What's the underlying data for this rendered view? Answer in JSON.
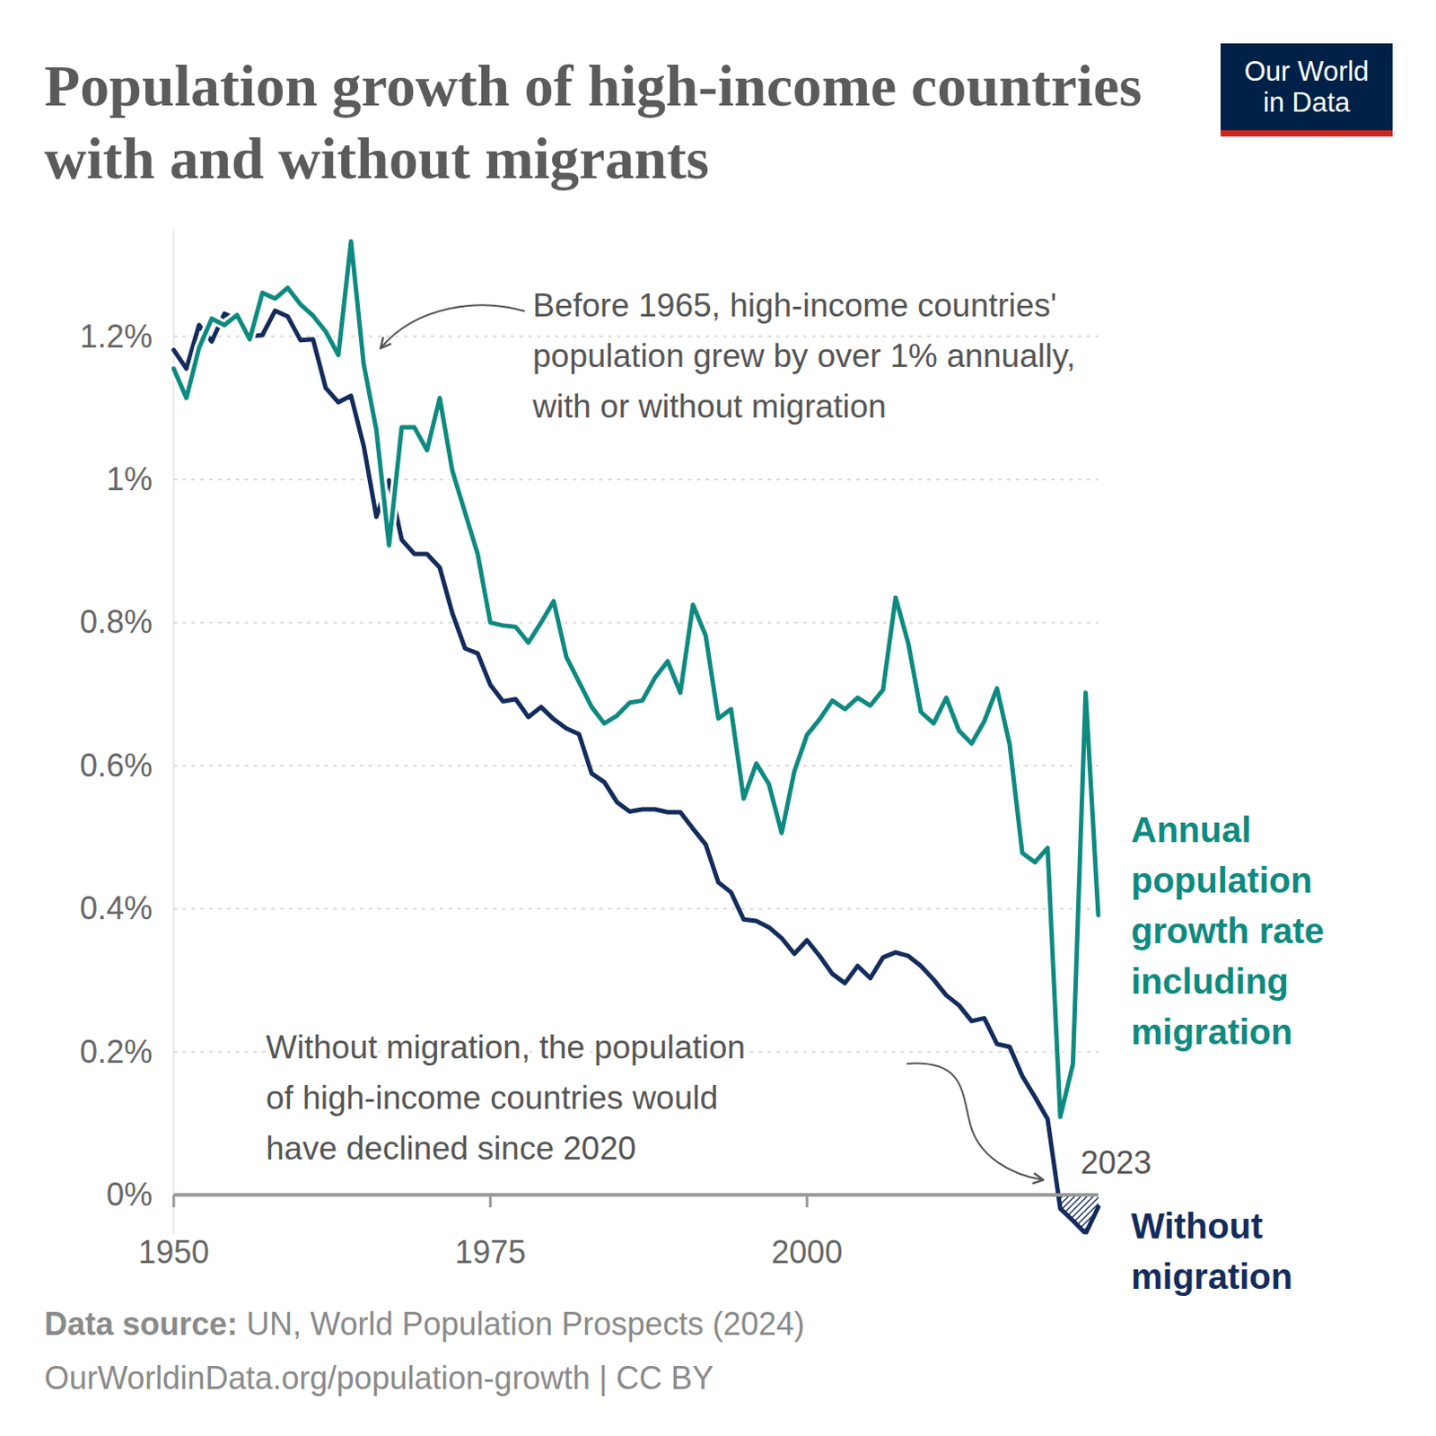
{
  "chart_data": {
    "type": "line",
    "title": "Population growth of high-income countries with and without migrants",
    "x": [
      1950,
      1951,
      1952,
      1953,
      1954,
      1955,
      1956,
      1957,
      1958,
      1959,
      1960,
      1961,
      1962,
      1963,
      1964,
      1965,
      1966,
      1967,
      1968,
      1969,
      1970,
      1971,
      1972,
      1973,
      1974,
      1975,
      1976,
      1977,
      1978,
      1979,
      1980,
      1981,
      1982,
      1983,
      1984,
      1985,
      1986,
      1987,
      1988,
      1989,
      1990,
      1991,
      1992,
      1993,
      1994,
      1995,
      1996,
      1997,
      1998,
      1999,
      2000,
      2001,
      2002,
      2003,
      2004,
      2005,
      2006,
      2007,
      2008,
      2009,
      2010,
      2011,
      2012,
      2013,
      2014,
      2015,
      2016,
      2017,
      2018,
      2019,
      2020,
      2021,
      2022,
      2023
    ],
    "xlim": [
      1950,
      2023
    ],
    "xticks": [
      1950,
      1975,
      2000,
      2023
    ],
    "ylim": [
      -0.055,
      1.35
    ],
    "yticks": [
      {
        "value": 0,
        "label": "0%"
      },
      {
        "value": 0.2,
        "label": "0.2%"
      },
      {
        "value": 0.4,
        "label": "0.4%"
      },
      {
        "value": 0.6,
        "label": "0.6%"
      },
      {
        "value": 0.8,
        "label": "0.8%"
      },
      {
        "value": 1,
        "label": "1%"
      },
      {
        "value": 1.2,
        "label": "1.2%"
      }
    ],
    "grid": true,
    "series": [
      {
        "name": "Without migration",
        "color": "#132c5c",
        "values": [
          1.181,
          1.155,
          1.216,
          1.193,
          1.232,
          1.223,
          1.2,
          1.202,
          1.236,
          1.228,
          1.195,
          1.196,
          1.128,
          1.108,
          1.117,
          1.047,
          0.948,
          0.999,
          0.916,
          0.896,
          0.896,
          0.877,
          0.813,
          0.764,
          0.757,
          0.713,
          0.69,
          0.693,
          0.668,
          0.682,
          0.665,
          0.652,
          0.644,
          0.589,
          0.577,
          0.549,
          0.536,
          0.539,
          0.539,
          0.535,
          0.535,
          0.512,
          0.49,
          0.437,
          0.423,
          0.385,
          0.383,
          0.374,
          0.359,
          0.337,
          0.356,
          0.334,
          0.309,
          0.296,
          0.32,
          0.303,
          0.332,
          0.339,
          0.334,
          0.32,
          0.301,
          0.279,
          0.265,
          0.243,
          0.247,
          0.211,
          0.207,
          0.166,
          0.137,
          0.106,
          -0.019,
          -0.036,
          -0.054,
          -0.017
        ]
      },
      {
        "name": "Annual population growth rate including migration",
        "color": "#0e8a80",
        "values": [
          1.155,
          1.114,
          1.184,
          1.225,
          1.216,
          1.23,
          1.196,
          1.261,
          1.253,
          1.268,
          1.245,
          1.229,
          1.207,
          1.174,
          1.333,
          1.161,
          1.069,
          0.908,
          1.073,
          1.073,
          1.041,
          1.114,
          1.012,
          0.954,
          0.896,
          0.8,
          0.796,
          0.794,
          0.772,
          0.8,
          0.83,
          0.752,
          0.717,
          0.682,
          0.659,
          0.67,
          0.688,
          0.691,
          0.723,
          0.746,
          0.702,
          0.825,
          0.782,
          0.666,
          0.679,
          0.554,
          0.603,
          0.574,
          0.506,
          0.592,
          0.643,
          0.665,
          0.691,
          0.679,
          0.695,
          0.684,
          0.706,
          0.835,
          0.771,
          0.675,
          0.659,
          0.695,
          0.649,
          0.631,
          0.662,
          0.708,
          0.63,
          0.478,
          0.465,
          0.485,
          0.109,
          0.183,
          0.702,
          0.391
        ]
      }
    ],
    "annotations": [
      {
        "lines": [
          "Before 1965, high-income countries'",
          "population grew by over 1% annually,",
          "with or without migration"
        ]
      },
      {
        "lines": [
          "Without migration, the population",
          "of high-income countries would",
          "have declined since 2020"
        ]
      }
    ],
    "source_label": "Data source:",
    "source": "UN, World Population Prospects (2024)",
    "footer": "OurWorldinData.org/population-growth | CC BY",
    "logo": [
      "Our World",
      "in Data"
    ]
  }
}
